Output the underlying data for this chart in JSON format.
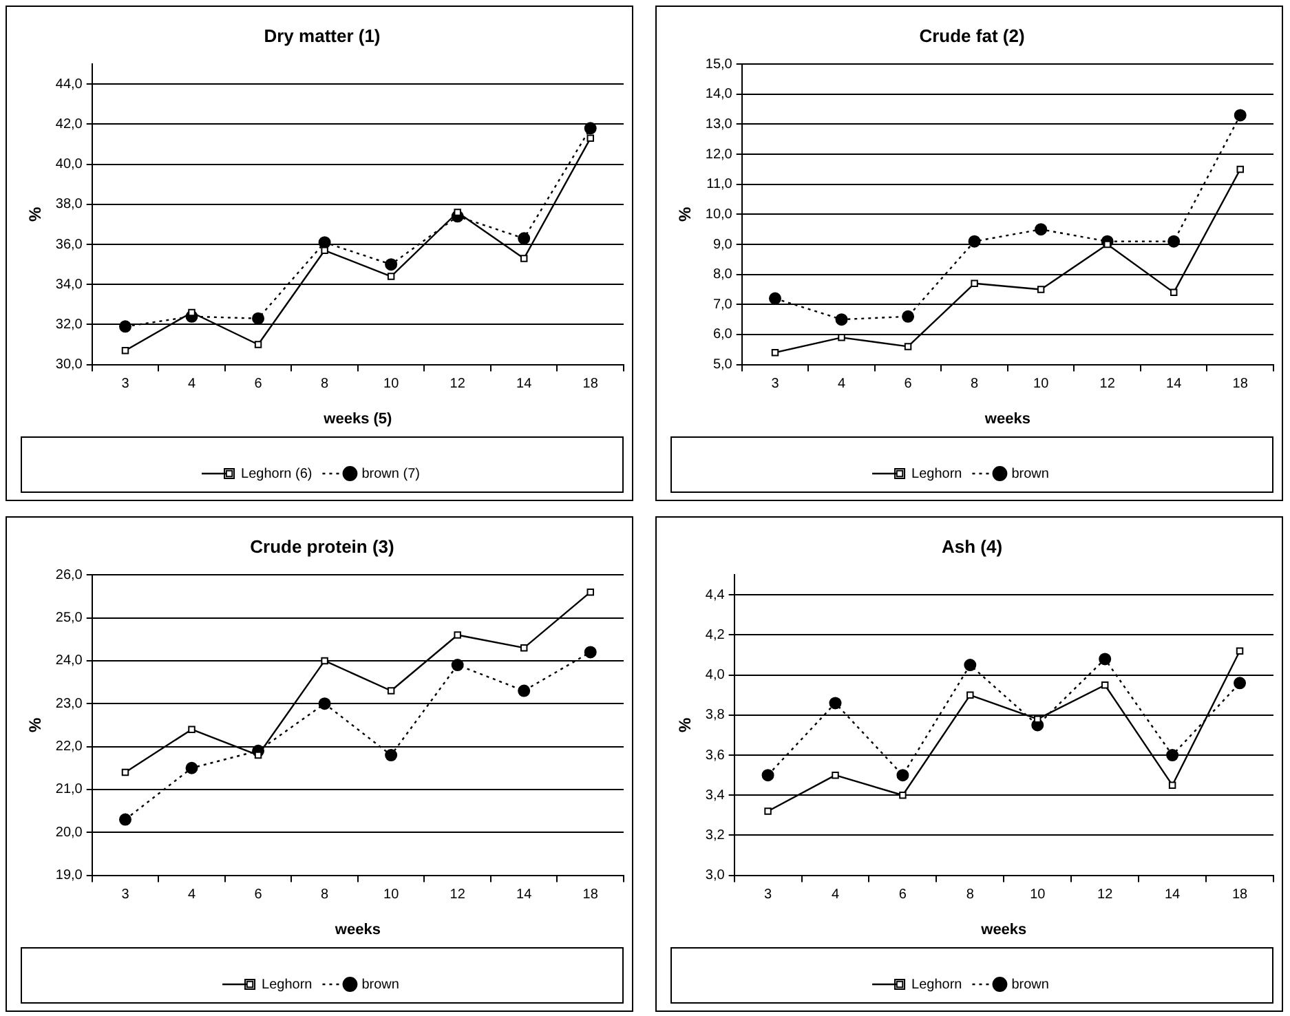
{
  "chart_data": [
    {
      "type": "line",
      "title": "Dry matter (1)",
      "xlabel": "weeks (5)",
      "ylabel": "%",
      "categories": [
        "3",
        "4",
        "6",
        "8",
        "10",
        "12",
        "14",
        "18"
      ],
      "ylim": [
        30,
        45
      ],
      "yticks": [
        {
          "value": 30,
          "label": "30,0"
        },
        {
          "value": 32,
          "label": "32,0"
        },
        {
          "value": 34,
          "label": "34,0"
        },
        {
          "value": 36,
          "label": "36,0"
        },
        {
          "value": 38,
          "label": "38,0"
        },
        {
          "value": 40,
          "label": "40,0"
        },
        {
          "value": 42,
          "label": "42,0"
        },
        {
          "value": 44,
          "label": "44,0"
        }
      ],
      "grid": "y",
      "legend": "bottom",
      "series": [
        {
          "name": "Leghorn (6)",
          "color": "#000000",
          "marker": "square",
          "line_style": "solid",
          "values": [
            30.7,
            32.6,
            31.0,
            35.7,
            34.4,
            37.6,
            35.3,
            41.3
          ]
        },
        {
          "name": "brown (7)",
          "color": "#000000",
          "marker": "circle",
          "line_style": "dotted",
          "values": [
            31.9,
            32.4,
            32.3,
            36.1,
            35.0,
            37.4,
            36.3,
            41.8
          ]
        }
      ]
    },
    {
      "type": "line",
      "title": "Crude fat (2)",
      "xlabel": "weeks",
      "ylabel": "%",
      "categories": [
        "3",
        "4",
        "6",
        "8",
        "10",
        "12",
        "14",
        "18"
      ],
      "ylim": [
        5,
        15
      ],
      "yticks": [
        {
          "value": 5,
          "label": "5,0"
        },
        {
          "value": 6,
          "label": "6,0"
        },
        {
          "value": 7,
          "label": "7,0"
        },
        {
          "value": 8,
          "label": "8,0"
        },
        {
          "value": 9,
          "label": "9,0"
        },
        {
          "value": 10,
          "label": "10,0"
        },
        {
          "value": 11,
          "label": "11,0"
        },
        {
          "value": 12,
          "label": "12,0"
        },
        {
          "value": 13,
          "label": "13,0"
        },
        {
          "value": 14,
          "label": "14,0"
        },
        {
          "value": 15,
          "label": "15,0"
        }
      ],
      "grid": "y",
      "legend": "bottom",
      "series": [
        {
          "name": "Leghorn",
          "color": "#000000",
          "marker": "square",
          "line_style": "solid",
          "values": [
            5.4,
            5.9,
            5.6,
            7.7,
            7.5,
            9.0,
            7.4,
            11.5
          ]
        },
        {
          "name": "brown",
          "color": "#000000",
          "marker": "circle",
          "line_style": "dotted",
          "values": [
            7.2,
            6.5,
            6.6,
            9.1,
            9.5,
            9.1,
            9.1,
            13.3
          ]
        }
      ]
    },
    {
      "type": "line",
      "title": "Crude protein (3)",
      "xlabel": "weeks",
      "ylabel": "%",
      "categories": [
        "3",
        "4",
        "6",
        "8",
        "10",
        "12",
        "14",
        "18"
      ],
      "ylim": [
        19,
        26
      ],
      "yticks": [
        {
          "value": 19,
          "label": "19,0"
        },
        {
          "value": 20,
          "label": "20,0"
        },
        {
          "value": 21,
          "label": "21,0"
        },
        {
          "value": 22,
          "label": "22,0"
        },
        {
          "value": 23,
          "label": "23,0"
        },
        {
          "value": 24,
          "label": "24,0"
        },
        {
          "value": 25,
          "label": "25,0"
        },
        {
          "value": 26,
          "label": "26,0"
        }
      ],
      "grid": "y",
      "legend": "bottom",
      "series": [
        {
          "name": "Leghorn",
          "color": "#000000",
          "marker": "square",
          "line_style": "solid",
          "values": [
            21.4,
            22.4,
            21.8,
            24.0,
            23.3,
            24.6,
            24.3,
            25.6
          ]
        },
        {
          "name": "brown",
          "color": "#000000",
          "marker": "circle",
          "line_style": "dotted",
          "values": [
            20.3,
            21.5,
            21.9,
            23.0,
            21.8,
            23.9,
            23.3,
            24.2
          ]
        }
      ]
    },
    {
      "type": "line",
      "title": "Ash (4)",
      "xlabel": "weeks",
      "ylabel": "%",
      "categories": [
        "3",
        "4",
        "6",
        "8",
        "10",
        "12",
        "14",
        "18"
      ],
      "ylim": [
        3.0,
        4.5
      ],
      "yticks": [
        {
          "value": 3.0,
          "label": "3,0"
        },
        {
          "value": 3.2,
          "label": "3,2"
        },
        {
          "value": 3.4,
          "label": "3,4"
        },
        {
          "value": 3.6,
          "label": "3,6"
        },
        {
          "value": 3.8,
          "label": "3,8"
        },
        {
          "value": 4.0,
          "label": "4,0"
        },
        {
          "value": 4.2,
          "label": "4,2"
        },
        {
          "value": 4.4,
          "label": "4,4"
        }
      ],
      "grid": "y",
      "legend": "bottom",
      "series": [
        {
          "name": "Leghorn",
          "color": "#000000",
          "marker": "square",
          "line_style": "solid",
          "values": [
            3.32,
            3.5,
            3.4,
            3.9,
            3.78,
            3.95,
            3.45,
            4.12
          ]
        },
        {
          "name": "brown",
          "color": "#000000",
          "marker": "circle",
          "line_style": "dotted",
          "values": [
            3.5,
            3.86,
            3.5,
            4.05,
            3.75,
            4.08,
            3.6,
            3.96
          ]
        }
      ]
    }
  ]
}
